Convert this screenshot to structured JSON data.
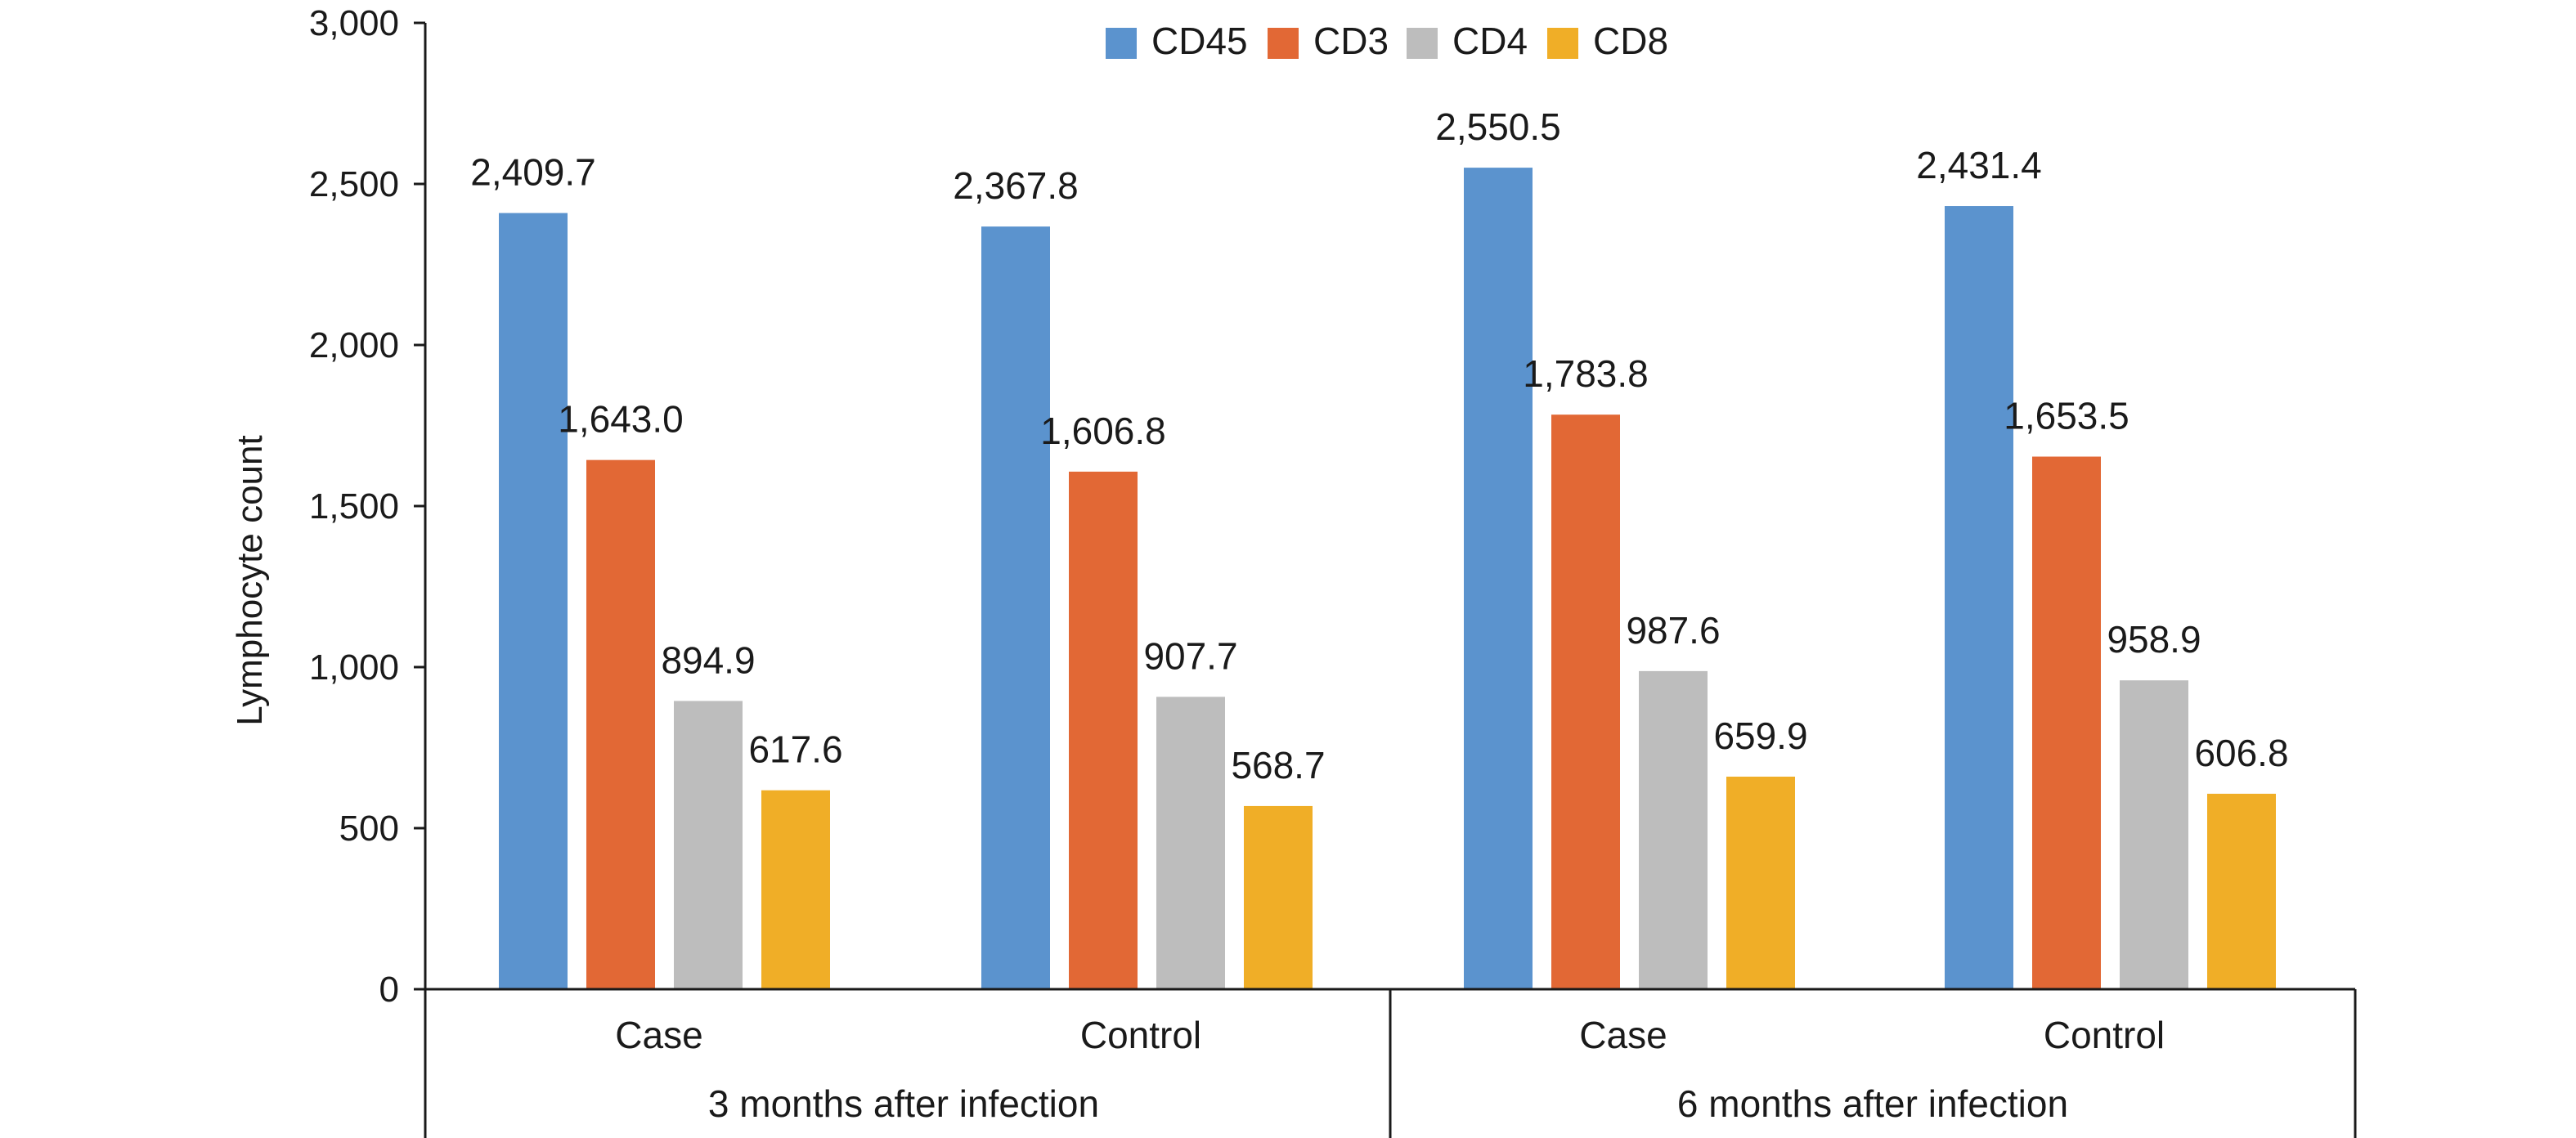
{
  "chart_data": {
    "type": "bar",
    "title": "",
    "ylabel": "Lymphocyte count",
    "xlabel": "",
    "ylim": [
      0,
      3000
    ],
    "yticks": [
      0,
      500,
      1000,
      1500,
      2000,
      2500,
      3000
    ],
    "ytick_labels": [
      "0",
      "500",
      "1,000",
      "1,500",
      "2,000",
      "2,500",
      "3,000"
    ],
    "grid": false,
    "legend_position": "top",
    "groups": [
      {
        "label": "3 months after infection",
        "categories": [
          "Case",
          "Control"
        ]
      },
      {
        "label": "6 months after infection",
        "categories": [
          "Case",
          "Control"
        ]
      }
    ],
    "categories": [
      "Case",
      "Control",
      "Case",
      "Control"
    ],
    "series": [
      {
        "name": "CD45",
        "color": "#5B93CE",
        "values": [
          2409.7,
          2367.8,
          2550.5,
          2431.4
        ],
        "labels": [
          "2,409.7",
          "2,367.8",
          "2,550.5",
          "2,431.4"
        ]
      },
      {
        "name": "CD3",
        "color": "#E26835",
        "values": [
          1643.0,
          1606.8,
          1783.8,
          1653.5
        ],
        "labels": [
          "1,643.0",
          "1,606.8",
          "1,783.8",
          "1,653.5"
        ]
      },
      {
        "name": "CD4",
        "color": "#BDBDBD",
        "values": [
          894.9,
          907.7,
          987.6,
          958.9
        ],
        "labels": [
          "894.9",
          "907.7",
          "987.6",
          "958.9"
        ]
      },
      {
        "name": "CD8",
        "color": "#F0AE27",
        "values": [
          617.6,
          568.7,
          659.9,
          606.8
        ],
        "labels": [
          "617.6",
          "568.7",
          "659.9",
          "606.8"
        ]
      }
    ]
  }
}
